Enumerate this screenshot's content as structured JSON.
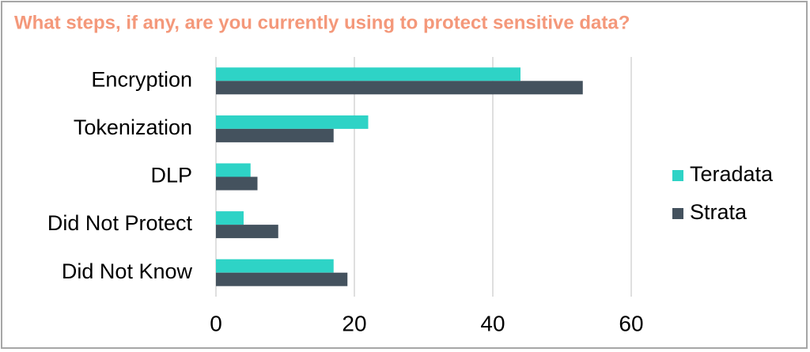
{
  "chart_data": {
    "type": "bar",
    "orientation": "horizontal",
    "title": "What steps, if any, are you currently using to protect sensitive data?",
    "categories": [
      "Encryption",
      "Tokenization",
      "DLP",
      "Did Not Protect",
      "Did Not Know"
    ],
    "series": [
      {
        "name": "Teradata",
        "color": "#2ed3c6",
        "values": [
          44,
          22,
          5,
          4,
          17
        ]
      },
      {
        "name": "Strata",
        "color": "#44525e",
        "values": [
          53,
          17,
          6,
          9,
          19
        ]
      }
    ],
    "xlim": [
      0,
      60
    ],
    "xticks": [
      0,
      20,
      40,
      60
    ],
    "grid": true,
    "legend": "right"
  }
}
